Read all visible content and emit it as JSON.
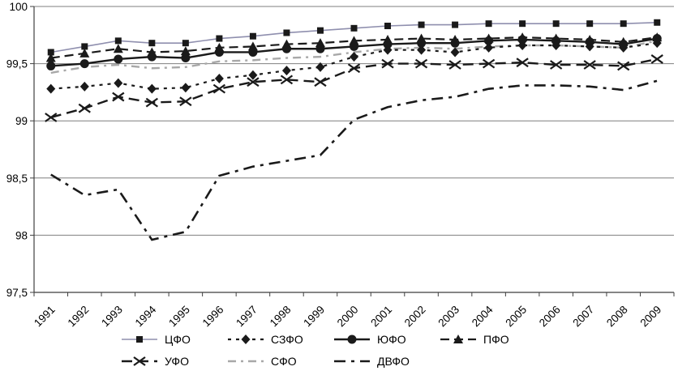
{
  "chart_data": {
    "type": "line",
    "title": "",
    "xlabel": "",
    "ylabel": "",
    "grid": "horizontal",
    "legend_position": "bottom",
    "ylim": [
      97.5,
      100
    ],
    "yticks": [
      {
        "value": 100,
        "label": "100"
      },
      {
        "value": 99.5,
        "label": "99,5"
      },
      {
        "value": 99,
        "label": "99"
      },
      {
        "value": 98.5,
        "label": "98,5"
      },
      {
        "value": 98,
        "label": "98"
      },
      {
        "value": 97.5,
        "label": "97,5"
      }
    ],
    "categories": [
      "1991",
      "1992",
      "1993",
      "1994",
      "1995",
      "1996",
      "1997",
      "1998",
      "1999",
      "2000",
      "2001",
      "2002",
      "2003",
      "2004",
      "2005",
      "2006",
      "2007",
      "2008",
      "2009"
    ],
    "series": [
      {
        "key": "cfo",
        "name": "ЦФО",
        "color": "#8f8fae",
        "marker_color": "#1a1a1a",
        "width": 1.6,
        "dash": null,
        "marker": "square",
        "values": [
          99.6,
          99.65,
          99.7,
          99.68,
          99.68,
          99.72,
          99.74,
          99.77,
          99.79,
          99.81,
          99.83,
          99.84,
          99.84,
          99.85,
          99.85,
          99.85,
          99.85,
          99.85,
          99.86
        ]
      },
      {
        "key": "szfo",
        "name": "СЗФО",
        "color": "#1a1a1a",
        "width": 2.2,
        "dash": "4,6",
        "marker": "diamond",
        "values": [
          99.28,
          99.3,
          99.33,
          99.28,
          99.29,
          99.37,
          99.4,
          99.44,
          99.47,
          99.56,
          99.62,
          99.62,
          99.6,
          99.64,
          99.66,
          99.66,
          99.65,
          99.64,
          99.68
        ]
      },
      {
        "key": "yufo",
        "name": "ЮФО",
        "color": "#1a1a1a",
        "width": 2.4,
        "dash": null,
        "marker": "circle",
        "values": [
          99.48,
          99.5,
          99.54,
          99.56,
          99.55,
          99.6,
          99.6,
          99.63,
          99.63,
          99.65,
          99.67,
          99.68,
          99.68,
          99.7,
          99.71,
          99.7,
          99.69,
          99.67,
          99.72
        ]
      },
      {
        "key": "pfo",
        "name": "ПФО",
        "color": "#1a1a1a",
        "width": 2.2,
        "dash": "11,6",
        "marker": "triangle",
        "values": [
          99.55,
          99.59,
          99.63,
          99.6,
          99.61,
          99.64,
          99.65,
          99.67,
          99.68,
          99.7,
          99.71,
          99.72,
          99.71,
          99.72,
          99.73,
          99.72,
          99.71,
          99.69,
          99.73
        ]
      },
      {
        "key": "ufo",
        "name": "УФО",
        "color": "#1a1a1a",
        "width": 2.4,
        "dash": "13,7",
        "marker": "x",
        "values": [
          99.03,
          99.11,
          99.21,
          99.16,
          99.17,
          99.28,
          99.34,
          99.36,
          99.34,
          99.46,
          99.5,
          99.5,
          99.49,
          99.5,
          99.51,
          99.49,
          99.49,
          99.48,
          99.54
        ]
      },
      {
        "key": "sfo",
        "name": "СФО",
        "color": "#a8a8a8",
        "width": 2.4,
        "dash": "10,6,3,6",
        "marker": null,
        "values": [
          99.42,
          99.47,
          99.49,
          99.46,
          99.47,
          99.52,
          99.53,
          99.55,
          99.56,
          99.6,
          99.63,
          99.64,
          99.63,
          99.65,
          99.66,
          99.66,
          99.65,
          99.64,
          99.7
        ]
      },
      {
        "key": "dvfo",
        "name": "ДВФО",
        "color": "#1a1a1a",
        "width": 2.6,
        "dash": "14,7,4,7",
        "marker": null,
        "values": [
          98.53,
          98.35,
          98.4,
          97.96,
          98.03,
          98.52,
          98.6,
          98.65,
          98.7,
          99.01,
          99.12,
          99.18,
          99.21,
          99.28,
          99.31,
          99.31,
          99.3,
          99.27,
          99.35
        ]
      }
    ],
    "legend_rows": [
      [
        "cfo",
        "szfo",
        "yufo",
        "pfo"
      ],
      [
        "ufo",
        "sfo",
        "dvfo"
      ]
    ],
    "draw_order": [
      "sfo",
      "dvfo",
      "szfo",
      "ufo",
      "pfo",
      "yufo",
      "cfo"
    ]
  }
}
